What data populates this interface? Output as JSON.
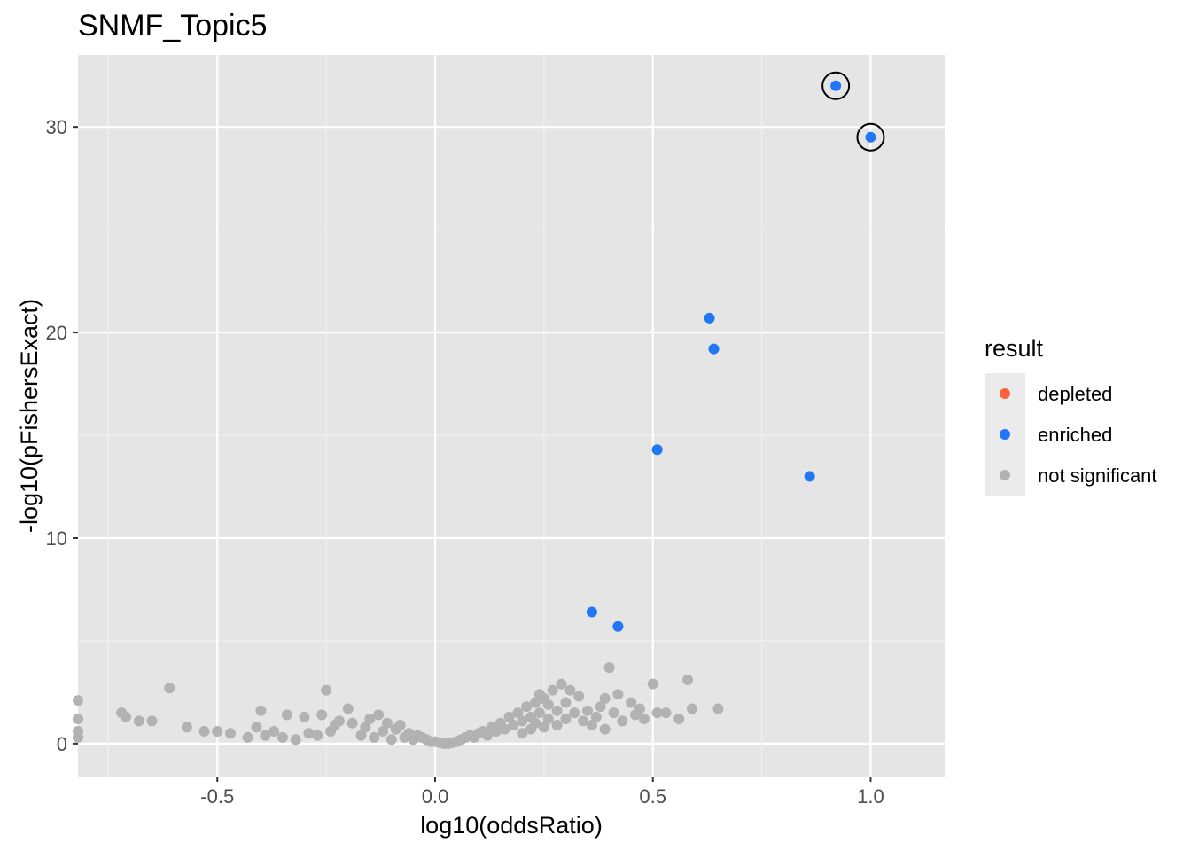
{
  "chart_data": {
    "type": "scatter",
    "title": "SNMF_Topic5",
    "xlabel": "log10(oddsRatio)",
    "ylabel": "-log10(pFishersExact)",
    "xlim": [
      -0.82,
      1.17
    ],
    "ylim": [
      -1.6,
      33.5
    ],
    "x_ticks": [
      -0.5,
      0.0,
      0.5,
      1.0
    ],
    "x_tick_labels": [
      "-0.5",
      "0.0",
      "0.5",
      "1.0"
    ],
    "y_ticks": [
      0,
      10,
      20,
      30
    ],
    "y_tick_labels": [
      "0",
      "10",
      "20",
      "30"
    ],
    "grid": true,
    "background": "#e5e5e5",
    "legend": {
      "title": "result",
      "position": "right",
      "entries": [
        {
          "label": "depleted",
          "color": "#f8643c"
        },
        {
          "label": "enriched",
          "color": "#2277f7"
        },
        {
          "label": "not significant",
          "color": "#b2b2b2"
        }
      ]
    },
    "series": [
      {
        "name": "enriched",
        "color": "#2277f7",
        "points": [
          {
            "x": 0.92,
            "y": 32.0,
            "highlighted": true
          },
          {
            "x": 1.0,
            "y": 29.5,
            "highlighted": true
          },
          {
            "x": 0.63,
            "y": 20.7
          },
          {
            "x": 0.64,
            "y": 19.2
          },
          {
            "x": 0.51,
            "y": 14.3
          },
          {
            "x": 0.86,
            "y": 13.0
          },
          {
            "x": 0.36,
            "y": 6.4
          },
          {
            "x": 0.42,
            "y": 5.7
          }
        ]
      },
      {
        "name": "not significant",
        "color": "#b2b2b2",
        "points": [
          {
            "x": -0.82,
            "y": 2.1
          },
          {
            "x": -0.82,
            "y": 1.2
          },
          {
            "x": -0.82,
            "y": 0.6
          },
          {
            "x": -0.82,
            "y": 0.3
          },
          {
            "x": -0.72,
            "y": 1.5
          },
          {
            "x": -0.71,
            "y": 1.3
          },
          {
            "x": -0.68,
            "y": 1.1
          },
          {
            "x": -0.65,
            "y": 1.1
          },
          {
            "x": -0.61,
            "y": 2.7
          },
          {
            "x": -0.57,
            "y": 0.8
          },
          {
            "x": -0.53,
            "y": 0.6
          },
          {
            "x": -0.5,
            "y": 0.6
          },
          {
            "x": -0.47,
            "y": 0.5
          },
          {
            "x": -0.43,
            "y": 0.3
          },
          {
            "x": -0.41,
            "y": 0.8
          },
          {
            "x": -0.4,
            "y": 1.6
          },
          {
            "x": -0.39,
            "y": 0.4
          },
          {
            "x": -0.37,
            "y": 0.6
          },
          {
            "x": -0.35,
            "y": 0.3
          },
          {
            "x": -0.34,
            "y": 1.4
          },
          {
            "x": -0.32,
            "y": 0.2
          },
          {
            "x": -0.3,
            "y": 1.3
          },
          {
            "x": -0.29,
            "y": 0.5
          },
          {
            "x": -0.27,
            "y": 0.4
          },
          {
            "x": -0.26,
            "y": 1.4
          },
          {
            "x": -0.25,
            "y": 2.6
          },
          {
            "x": -0.24,
            "y": 0.6
          },
          {
            "x": -0.23,
            "y": 0.9
          },
          {
            "x": -0.22,
            "y": 1.1
          },
          {
            "x": -0.2,
            "y": 1.7
          },
          {
            "x": -0.19,
            "y": 1.0
          },
          {
            "x": -0.17,
            "y": 0.4
          },
          {
            "x": -0.16,
            "y": 0.8
          },
          {
            "x": -0.15,
            "y": 1.2
          },
          {
            "x": -0.14,
            "y": 0.3
          },
          {
            "x": -0.13,
            "y": 1.4
          },
          {
            "x": -0.12,
            "y": 0.6
          },
          {
            "x": -0.11,
            "y": 1.0
          },
          {
            "x": -0.1,
            "y": 0.2
          },
          {
            "x": -0.09,
            "y": 0.7
          },
          {
            "x": -0.08,
            "y": 0.9
          },
          {
            "x": -0.07,
            "y": 0.3
          },
          {
            "x": -0.06,
            "y": 0.5
          },
          {
            "x": -0.05,
            "y": 0.2
          },
          {
            "x": -0.04,
            "y": 0.4
          },
          {
            "x": -0.03,
            "y": 0.3
          },
          {
            "x": -0.02,
            "y": 0.2
          },
          {
            "x": -0.01,
            "y": 0.1
          },
          {
            "x": 0.0,
            "y": 0.1
          },
          {
            "x": 0.01,
            "y": 0.05
          },
          {
            "x": 0.02,
            "y": 0.0
          },
          {
            "x": 0.03,
            "y": 0.0
          },
          {
            "x": 0.04,
            "y": 0.05
          },
          {
            "x": 0.05,
            "y": 0.1
          },
          {
            "x": 0.06,
            "y": 0.2
          },
          {
            "x": 0.07,
            "y": 0.3
          },
          {
            "x": 0.08,
            "y": 0.4
          },
          {
            "x": 0.09,
            "y": 0.3
          },
          {
            "x": 0.1,
            "y": 0.5
          },
          {
            "x": 0.11,
            "y": 0.6
          },
          {
            "x": 0.12,
            "y": 0.4
          },
          {
            "x": 0.13,
            "y": 0.8
          },
          {
            "x": 0.14,
            "y": 0.6
          },
          {
            "x": 0.15,
            "y": 1.0
          },
          {
            "x": 0.16,
            "y": 0.7
          },
          {
            "x": 0.17,
            "y": 1.3
          },
          {
            "x": 0.18,
            "y": 0.9
          },
          {
            "x": 0.19,
            "y": 1.5
          },
          {
            "x": 0.2,
            "y": 1.1
          },
          {
            "x": 0.2,
            "y": 0.5
          },
          {
            "x": 0.21,
            "y": 1.8
          },
          {
            "x": 0.22,
            "y": 1.3
          },
          {
            "x": 0.22,
            "y": 0.7
          },
          {
            "x": 0.23,
            "y": 2.0
          },
          {
            "x": 0.23,
            "y": 1.0
          },
          {
            "x": 0.24,
            "y": 2.4
          },
          {
            "x": 0.24,
            "y": 1.5
          },
          {
            "x": 0.25,
            "y": 2.2
          },
          {
            "x": 0.25,
            "y": 0.8
          },
          {
            "x": 0.26,
            "y": 1.9
          },
          {
            "x": 0.26,
            "y": 1.2
          },
          {
            "x": 0.27,
            "y": 2.6
          },
          {
            "x": 0.28,
            "y": 1.6
          },
          {
            "x": 0.28,
            "y": 0.9
          },
          {
            "x": 0.29,
            "y": 2.9
          },
          {
            "x": 0.3,
            "y": 2.0
          },
          {
            "x": 0.3,
            "y": 1.2
          },
          {
            "x": 0.31,
            "y": 2.6
          },
          {
            "x": 0.32,
            "y": 1.5
          },
          {
            "x": 0.33,
            "y": 2.3
          },
          {
            "x": 0.34,
            "y": 1.1
          },
          {
            "x": 0.35,
            "y": 1.6
          },
          {
            "x": 0.36,
            "y": 0.9
          },
          {
            "x": 0.37,
            "y": 1.3
          },
          {
            "x": 0.38,
            "y": 1.8
          },
          {
            "x": 0.39,
            "y": 2.2
          },
          {
            "x": 0.39,
            "y": 0.7
          },
          {
            "x": 0.4,
            "y": 3.7
          },
          {
            "x": 0.41,
            "y": 1.5
          },
          {
            "x": 0.42,
            "y": 2.4
          },
          {
            "x": 0.43,
            "y": 1.1
          },
          {
            "x": 0.45,
            "y": 2.0
          },
          {
            "x": 0.46,
            "y": 1.4
          },
          {
            "x": 0.47,
            "y": 1.7
          },
          {
            "x": 0.48,
            "y": 1.2
          },
          {
            "x": 0.5,
            "y": 2.9
          },
          {
            "x": 0.51,
            "y": 1.5
          },
          {
            "x": 0.53,
            "y": 1.5
          },
          {
            "x": 0.56,
            "y": 1.2
          },
          {
            "x": 0.58,
            "y": 3.1
          },
          {
            "x": 0.59,
            "y": 1.7
          },
          {
            "x": 0.65,
            "y": 1.7
          }
        ]
      }
    ],
    "highlight_ring_color": "#000000"
  }
}
